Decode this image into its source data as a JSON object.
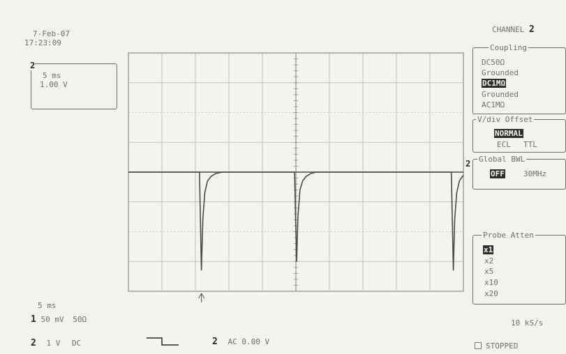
{
  "header": {
    "date": "7-Feb-07",
    "time": "17:23:09"
  },
  "trace_box": {
    "channel": "2",
    "timebase": "5 ms",
    "volts": "1.00 V"
  },
  "right_panel": {
    "channel_label": "CHANNEL",
    "channel_number": "2",
    "coupling": {
      "title": "Coupling",
      "options": [
        "DC50Ω",
        "Grounded",
        "DC1MΩ",
        "Grounded",
        "AC1MΩ"
      ],
      "selected": "DC1MΩ"
    },
    "vdiv_offset": {
      "title": "V/div Offset",
      "selected": "NORMAL",
      "options": [
        "ECL",
        "TTL"
      ]
    },
    "global_bwl": {
      "title": "Global BWL",
      "selected": "OFF",
      "option": "30MHz"
    },
    "probe_atten": {
      "title": "Probe Atten",
      "options": [
        "x1",
        "x2",
        "x5",
        "x10",
        "x20"
      ],
      "selected": "x1"
    }
  },
  "marker": {
    "trace_marker": "2"
  },
  "bottom": {
    "timebase": "5 ms",
    "ch1": {
      "num": "1",
      "scale": "50 mV",
      "coupling": "50Ω"
    },
    "ch2": {
      "num": "2",
      "scale": "1 V",
      "coupling": "DC"
    },
    "trigger": {
      "num": "2",
      "coupling": "AC",
      "level": "0.00 V"
    },
    "sample_rate": "10 kS/s",
    "status": "STOPPED"
  },
  "chart_data": {
    "type": "line",
    "title": "",
    "xlabel": "",
    "ylabel": "",
    "grid": true,
    "grid_divisions": {
      "x": 10,
      "y": 8
    },
    "x_unit": "ms",
    "x_per_div": 5,
    "y_per_div": 1.0,
    "y_unit": "V",
    "xlim": [
      0,
      50
    ],
    "ylim": [
      -4,
      4
    ],
    "series": [
      {
        "x": [
          0,
          10.6,
          10.9,
          11.1,
          11.4,
          11.8,
          12.3,
          13.0,
          14.0,
          48.2,
          48.5,
          48.7,
          49.0,
          49.4,
          50
        ],
        "y": [
          0,
          0,
          -3.3,
          -1.6,
          -0.7,
          -0.3,
          -0.15,
          -0.05,
          0,
          0,
          -3.3,
          -1.6,
          -0.7,
          -0.3,
          -0.1
        ]
      },
      {
        "x": [
          0,
          24.8,
          25.1,
          25.3,
          25.6,
          26.0,
          26.5,
          27.2,
          28.0,
          50
        ],
        "y": [
          0,
          0,
          -3.0,
          -1.5,
          -0.6,
          -0.3,
          -0.15,
          -0.05,
          0,
          0
        ]
      }
    ],
    "trigger_position_ms": 10.9
  }
}
